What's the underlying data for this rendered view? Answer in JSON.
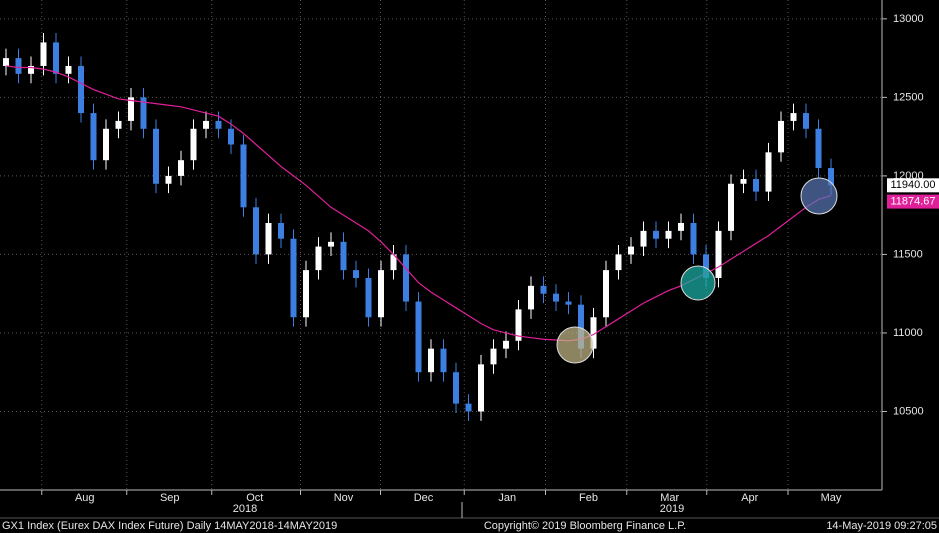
{
  "chart_data": {
    "type": "candlestick",
    "up_color": "#ffffff",
    "down_color": "#3d7fe0",
    "open": [
      12700,
      12750,
      12650,
      12700,
      12850,
      12650,
      12700,
      12400,
      12100,
      12300,
      12350,
      12500,
      12300,
      11950,
      12000,
      12100,
      12300,
      12350,
      12300,
      12200,
      11800,
      11500,
      11700,
      11600,
      11100,
      11400,
      11550,
      11580,
      11400,
      11350,
      11100,
      11400,
      11500,
      11200,
      10750,
      10900,
      10750,
      10550,
      10500,
      10800,
      10900,
      10950,
      11150,
      11300,
      11250,
      11200,
      11180,
      10900,
      11100,
      11400,
      11500,
      11550,
      11650,
      11600,
      11650,
      11700,
      11500,
      11350,
      11650,
      11950,
      11980,
      11900,
      12150,
      12350,
      12400,
      12300,
      12050
    ],
    "high": [
      12810,
      12810,
      12760,
      12910,
      12910,
      12760,
      12760,
      12460,
      12360,
      12410,
      12560,
      12560,
      12360,
      12060,
      12160,
      12360,
      12410,
      12410,
      12360,
      12260,
      11860,
      11760,
      11760,
      11660,
      11460,
      11610,
      11640,
      11640,
      11460,
      11410,
      11460,
      11560,
      11560,
      11260,
      10960,
      10960,
      10810,
      10610,
      10860,
      10960,
      11010,
      11210,
      11360,
      11360,
      11310,
      11260,
      11240,
      11160,
      11460,
      11560,
      11610,
      11710,
      11710,
      11710,
      11760,
      11760,
      11560,
      11710,
      12010,
      12040,
      12040,
      12210,
      12410,
      12460,
      12460,
      12360,
      12110
    ],
    "low": [
      12640,
      12590,
      12590,
      12640,
      12590,
      12590,
      12340,
      12040,
      12040,
      12240,
      12290,
      12240,
      11890,
      11890,
      11940,
      12040,
      12240,
      12240,
      12140,
      11740,
      11440,
      11440,
      11540,
      11040,
      11040,
      11340,
      11490,
      11340,
      11290,
      11040,
      11040,
      11340,
      11140,
      10690,
      10690,
      10690,
      10490,
      10440,
      10440,
      10740,
      10840,
      10890,
      11090,
      11190,
      11140,
      11120,
      10840,
      10840,
      11040,
      11340,
      11440,
      11490,
      11540,
      11540,
      11590,
      11440,
      11290,
      11290,
      11590,
      11890,
      11840,
      11840,
      12090,
      12290,
      12240,
      11990,
      11880
    ],
    "close": [
      12750,
      12650,
      12700,
      12850,
      12650,
      12700,
      12400,
      12100,
      12300,
      12350,
      12500,
      12300,
      11950,
      12000,
      12100,
      12300,
      12350,
      12300,
      12200,
      11800,
      11500,
      11700,
      11600,
      11100,
      11400,
      11550,
      11580,
      11400,
      11350,
      11100,
      11400,
      11500,
      11200,
      10750,
      10900,
      10750,
      10550,
      10500,
      10800,
      10900,
      10950,
      11150,
      11300,
      11250,
      11200,
      11180,
      10900,
      11100,
      11400,
      11500,
      11550,
      11650,
      11600,
      11650,
      11700,
      11500,
      11350,
      11650,
      11950,
      11980,
      11900,
      12150,
      12350,
      12400,
      12300,
      12050,
      11940
    ],
    "last_label": "11940.00",
    "ma": {
      "color": "#e0209a",
      "last_label": "11874.67",
      "values": [
        12700,
        12690,
        12690,
        12680,
        12660,
        12630,
        12590,
        12550,
        12520,
        12490,
        12480,
        12470,
        12460,
        12450,
        12440,
        12420,
        12400,
        12380,
        12330,
        12270,
        12200,
        12130,
        12060,
        12000,
        11940,
        11870,
        11800,
        11750,
        11700,
        11650,
        11580,
        11500,
        11410,
        11320,
        11260,
        11210,
        11160,
        11110,
        11060,
        11020,
        11000,
        10980,
        10970,
        10960,
        10955,
        10950,
        10960,
        10990,
        11040,
        11090,
        11140,
        11190,
        11230,
        11270,
        11300,
        11340,
        11380,
        11420,
        11470,
        11520,
        11570,
        11620,
        11680,
        11740,
        11800,
        11850,
        11874.67
      ]
    },
    "ylim": [
      10000,
      13120
    ],
    "yticks": [
      10500,
      11000,
      11500,
      12000,
      12500,
      13000
    ],
    "grid": true,
    "xticks": [
      {
        "value": 6.3,
        "label": "Aug"
      },
      {
        "value": 13.1,
        "label": "Sep"
      },
      {
        "value": 19.9,
        "label": "Oct"
      },
      {
        "value": 27,
        "label": "Nov"
      },
      {
        "value": 33.4,
        "label": "Dec"
      },
      {
        "value": 40.1,
        "label": "Jan"
      },
      {
        "value": 46.6,
        "label": "Feb"
      },
      {
        "value": 53.1,
        "label": "Mar"
      },
      {
        "value": 59.5,
        "label": "Apr"
      },
      {
        "value": 66,
        "label": "May"
      }
    ],
    "year_labels": [
      "2018",
      "2019"
    ],
    "footer": {
      "left": "GX1 Index (Eurex DAX Index Future)  Daily 14MAY2018-14MAY2019",
      "center": "Copyright© 2019 Bloomberg Finance L.P.",
      "right": "14-May-2019 09:27:05"
    }
  }
}
